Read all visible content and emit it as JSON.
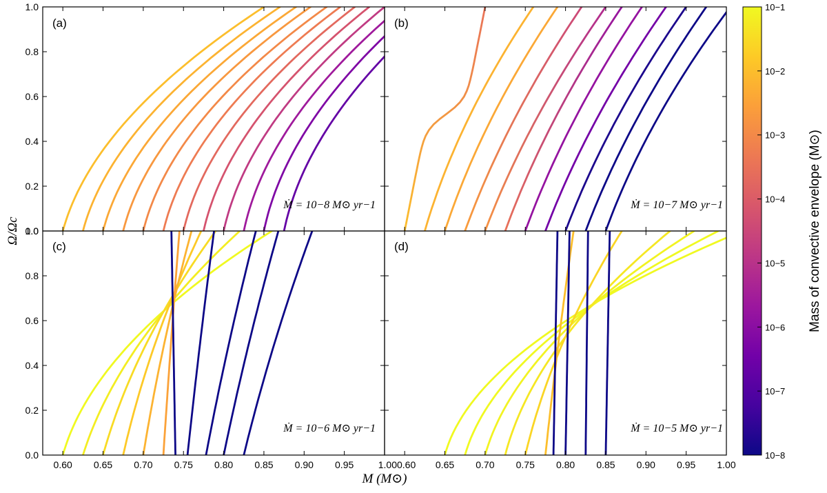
{
  "chart_data": {
    "type": "line",
    "xlabel": "M (M⊙)",
    "ylabel": "Ω/Ωc",
    "xlim": [
      0.575,
      1.0
    ],
    "ylim": [
      0.0,
      1.0
    ],
    "x_ticks": [
      "0.60",
      "0.65",
      "0.70",
      "0.75",
      "0.80",
      "0.85",
      "0.90",
      "0.95",
      "1.00"
    ],
    "y_ticks": [
      "0.0",
      "0.2",
      "0.4",
      "0.6",
      "0.8",
      "1.0"
    ],
    "colorbar": {
      "label": "Mass of convective envelope (M⊙)",
      "ticks": [
        "10−1",
        "10−2",
        "10−3",
        "10−4",
        "10−5",
        "10−6",
        "10−7",
        "10−8"
      ],
      "log_min": -8,
      "log_max": -1,
      "colormap": [
        "#0d0887",
        "#46039f",
        "#7201a8",
        "#9c179e",
        "#bd3786",
        "#d8576b",
        "#ed7953",
        "#fb9f3a",
        "#fdca26",
        "#f0f921"
      ]
    },
    "panels": [
      {
        "label": "(a)",
        "annotation": "Ṁ = 10−8 M⊙ yr−1",
        "series": [
          {
            "start": 0.6,
            "end": 0.85,
            "curve": 0.7,
            "logc": -2.0
          },
          {
            "start": 0.625,
            "end": 0.87,
            "curve": 0.7,
            "logc": -2.2
          },
          {
            "start": 0.65,
            "end": 0.89,
            "curve": 0.7,
            "logc": -2.4
          },
          {
            "start": 0.675,
            "end": 0.908,
            "curve": 0.7,
            "logc": -2.7
          },
          {
            "start": 0.7,
            "end": 0.928,
            "curve": 0.7,
            "logc": -3.0
          },
          {
            "start": 0.725,
            "end": 0.945,
            "curve": 0.7,
            "logc": -3.3
          },
          {
            "start": 0.75,
            "end": 0.963,
            "curve": 0.7,
            "logc": -3.7
          },
          {
            "start": 0.775,
            "end": 0.981,
            "curve": 0.7,
            "logc": -4.2
          },
          {
            "start": 0.8,
            "end": 1.0,
            "curve": 0.7,
            "logc": -4.8
          },
          {
            "start": 0.825,
            "end": 1.02,
            "curve": 0.7,
            "logc": -5.6
          },
          {
            "start": 0.85,
            "end": 1.04,
            "curve": 0.7,
            "logc": -6.2
          },
          {
            "start": 0.875,
            "end": 1.065,
            "curve": 0.7,
            "logc": -6.7
          }
        ]
      },
      {
        "label": "(b)",
        "annotation": "Ṁ = 10−7 M⊙ yr−1",
        "series": [
          {
            "start": 0.6,
            "end": 0.7,
            "kink": true,
            "logc": -2.0,
            "logc_end": -3.5
          },
          {
            "start": 0.625,
            "end": 0.76,
            "curve": 0.4,
            "logc": -2.2
          },
          {
            "start": 0.65,
            "end": 0.79,
            "curve": 0.35,
            "logc": -2.4
          },
          {
            "start": 0.675,
            "end": 0.82,
            "curve": 0.3,
            "logc": -2.6,
            "logc_end": -4.5
          },
          {
            "start": 0.7,
            "end": 0.85,
            "curve": 0.3,
            "logc": -2.8,
            "logc_end": -5.2
          },
          {
            "start": 0.725,
            "end": 0.87,
            "curve": 0.3,
            "logc": -3.5,
            "logc_end": -5.8
          },
          {
            "start": 0.75,
            "end": 0.895,
            "curve": 0.3,
            "logc": -5.8
          },
          {
            "start": 0.775,
            "end": 0.925,
            "curve": 0.3,
            "logc": -6.4
          },
          {
            "start": 0.8,
            "end": 0.95,
            "curve": 0.3,
            "logc": -7.8
          },
          {
            "start": 0.825,
            "end": 0.975,
            "curve": 0.3,
            "logc": -8.0
          },
          {
            "start": 0.85,
            "end": 1.005,
            "curve": 0.35,
            "logc": -8.0
          }
        ]
      },
      {
        "label": "(c)",
        "annotation": "Ṁ = 10−6 M⊙ yr−1",
        "series": [
          {
            "start": 0.6,
            "end": 0.86,
            "curve": 0.7,
            "logc": -1.0
          },
          {
            "start": 0.625,
            "end": 0.82,
            "curve": 0.55,
            "logc": -1.2
          },
          {
            "start": 0.65,
            "end": 0.79,
            "curve": 0.45,
            "logc": -1.5
          },
          {
            "start": 0.675,
            "end": 0.772,
            "curve": 0.35,
            "logc": -1.8
          },
          {
            "start": 0.7,
            "end": 0.76,
            "curve": 0.25,
            "logc": -2.2
          },
          {
            "start": 0.725,
            "end": 0.745,
            "curve": 0.1,
            "logc": -2.5
          },
          {
            "start": 0.74,
            "end": 0.735,
            "curve": 0.0,
            "logc": -8.0
          },
          {
            "start": 0.755,
            "end": 0.788,
            "curve": 0.1,
            "logc": -8.0
          },
          {
            "start": 0.778,
            "end": 0.84,
            "curve": 0.15,
            "logc": -8.0
          },
          {
            "start": 0.8,
            "end": 0.868,
            "curve": 0.15,
            "logc": -8.0
          },
          {
            "start": 0.825,
            "end": 0.91,
            "curve": 0.2,
            "logc": -8.0
          }
        ]
      },
      {
        "label": "(d)",
        "annotation": "Ṁ = 10−5 M⊙ yr−1",
        "series": [
          {
            "start": 0.65,
            "end": 1.02,
            "curve": 0.8,
            "logc": -1.0
          },
          {
            "start": 0.675,
            "end": 0.99,
            "curve": 0.75,
            "logc": -1.0
          },
          {
            "start": 0.7,
            "end": 0.96,
            "curve": 0.7,
            "logc": -1.1
          },
          {
            "start": 0.725,
            "end": 0.93,
            "curve": 0.65,
            "logc": -1.3
          },
          {
            "start": 0.75,
            "end": 0.87,
            "curve": 0.45,
            "logc": -1.6
          },
          {
            "start": 0.775,
            "end": 0.81,
            "curve": 0.15,
            "logc": -2.0
          },
          {
            "start": 0.785,
            "end": 0.79,
            "curve": 0.0,
            "logc": -8.0
          },
          {
            "start": 0.8,
            "end": 0.805,
            "curve": 0.0,
            "logc": -8.0
          },
          {
            "start": 0.825,
            "end": 0.828,
            "curve": 0.0,
            "logc": -8.0
          },
          {
            "start": 0.85,
            "end": 0.855,
            "curve": 0.0,
            "logc": -8.0
          }
        ]
      }
    ]
  }
}
